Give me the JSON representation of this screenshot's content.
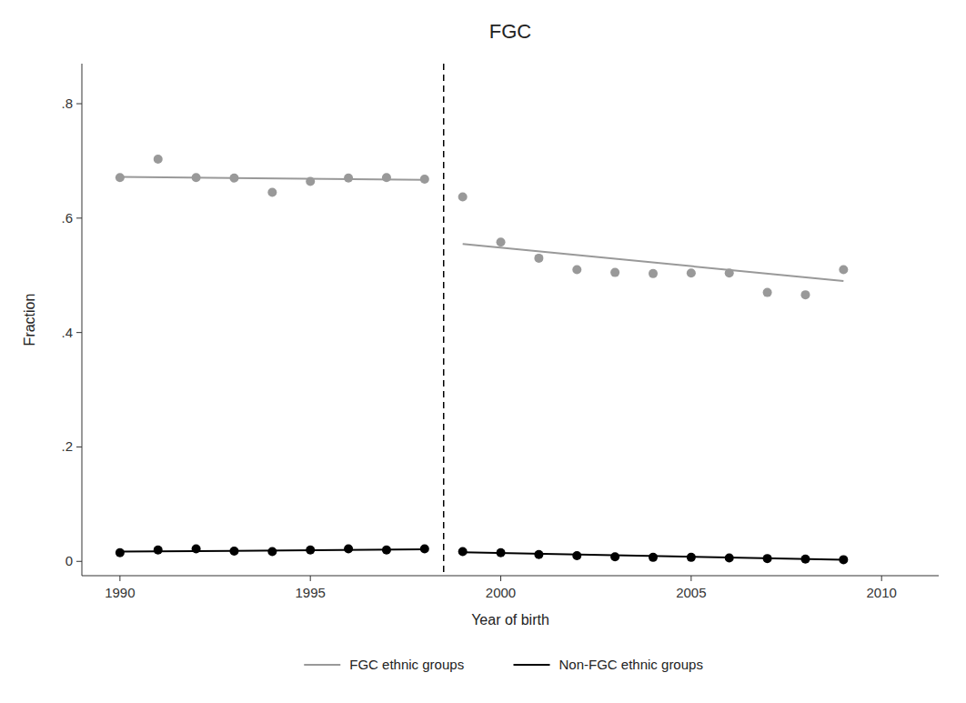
{
  "chart_data": {
    "type": "scatter",
    "title": "FGC",
    "xlabel": "Year of birth",
    "ylabel": "Fraction",
    "xlim": [
      1989.0,
      2011.5
    ],
    "ylim": [
      -0.025,
      0.87
    ],
    "xticks": [
      1990,
      1995,
      2000,
      2005,
      2010
    ],
    "yticks": [
      0,
      {
        "value": 0.2,
        "label": ".2"
      },
      {
        "value": 0.4,
        "label": ".4"
      },
      {
        "value": 0.6,
        "label": ".6"
      },
      {
        "value": 0.8,
        "label": ".8"
      }
    ],
    "grid": false,
    "legend": "bottom",
    "vline": 1998.5,
    "series": [
      {
        "type": "line",
        "color": "#999999",
        "line_style": "solid",
        "x": [
          1990,
          1998
        ],
        "values": [
          0.672,
          0.667
        ]
      },
      {
        "name": "FGC ethnic groups",
        "type": "line",
        "color": "#999999",
        "line_style": "solid",
        "x": [
          1999,
          2009
        ],
        "values": [
          0.555,
          0.49
        ]
      },
      {
        "type": "line",
        "color": "#000000",
        "line_style": "solid",
        "x": [
          1990,
          1998
        ],
        "values": [
          0.017,
          0.021
        ]
      },
      {
        "name": "Non-FGC ethnic groups",
        "type": "line",
        "color": "#000000",
        "line_style": "solid",
        "x": [
          1999,
          2009
        ],
        "values": [
          0.016,
          0.003
        ]
      },
      {
        "type": "scatter",
        "color": "#999999",
        "marker": "circle",
        "x": [
          1990,
          1991,
          1992,
          1993,
          1994,
          1995,
          1996,
          1997,
          1998
        ],
        "values": [
          0.671,
          0.703,
          0.671,
          0.67,
          0.645,
          0.664,
          0.67,
          0.671,
          0.668
        ]
      },
      {
        "type": "scatter",
        "color": "#999999",
        "marker": "circle",
        "x": [
          1999,
          2000,
          2001,
          2002,
          2003,
          2004,
          2005,
          2006,
          2007,
          2008,
          2009
        ],
        "values": [
          0.637,
          0.558,
          0.53,
          0.51,
          0.505,
          0.503,
          0.504,
          0.504,
          0.47,
          0.466,
          0.51
        ]
      },
      {
        "type": "scatter",
        "color": "#000000",
        "marker": "circle",
        "x": [
          1990,
          1991,
          1992,
          1993,
          1994,
          1995,
          1996,
          1997,
          1998
        ],
        "values": [
          0.015,
          0.02,
          0.022,
          0.018,
          0.017,
          0.02,
          0.022,
          0.02,
          0.022
        ]
      },
      {
        "type": "scatter",
        "color": "#000000",
        "marker": "circle",
        "x": [
          1999,
          2000,
          2001,
          2002,
          2003,
          2004,
          2005,
          2006,
          2007,
          2008,
          2009
        ],
        "values": [
          0.017,
          0.015,
          0.012,
          0.01,
          0.008,
          0.007,
          0.007,
          0.006,
          0.005,
          0.004,
          0.003
        ]
      }
    ]
  }
}
